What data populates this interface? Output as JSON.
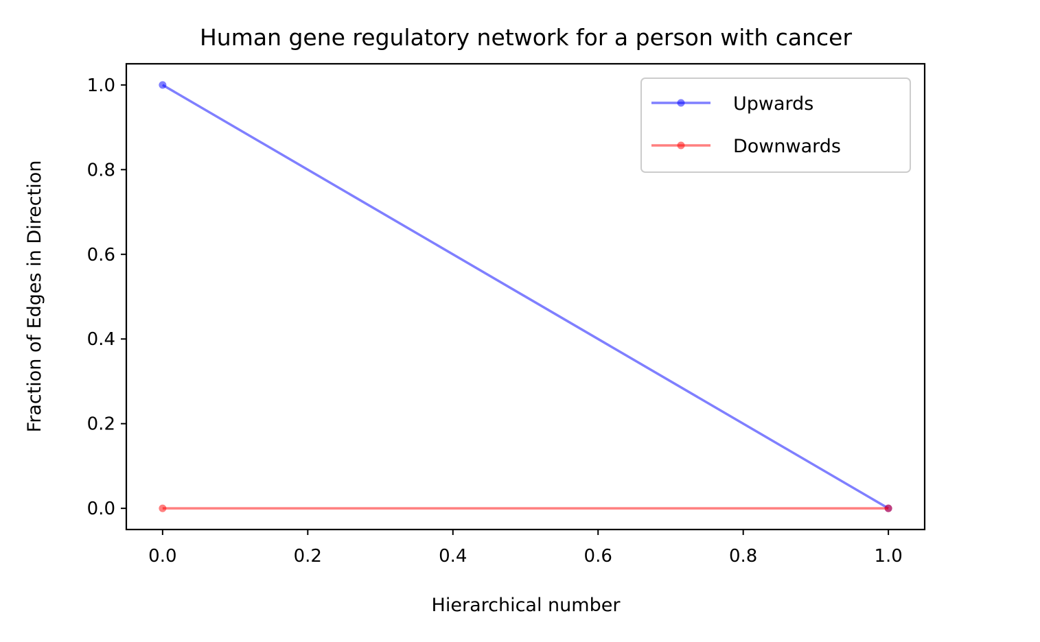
{
  "chart_data": {
    "type": "line",
    "title": "Human gene regulatory network for a person with cancer",
    "xlabel": "Hierarchical number",
    "ylabel": "Fraction of Edges in Direction",
    "xlim": [
      -0.05,
      1.05
    ],
    "ylim": [
      -0.05,
      1.05
    ],
    "xticks": [
      0.0,
      0.2,
      0.4,
      0.6,
      0.8,
      1.0
    ],
    "xtick_labels": [
      "0.0",
      "0.2",
      "0.4",
      "0.6",
      "0.8",
      "1.0"
    ],
    "yticks": [
      0.0,
      0.2,
      0.4,
      0.6,
      0.8,
      1.0
    ],
    "ytick_labels": [
      "0.0",
      "0.2",
      "0.4",
      "0.6",
      "0.8",
      "1.0"
    ],
    "grid": false,
    "legend_position": "top-right",
    "series": [
      {
        "name": "Upwards",
        "color": "#0000ff",
        "x": [
          0.0,
          1.0
        ],
        "y": [
          1.0,
          0.0
        ]
      },
      {
        "name": "Downwards",
        "color": "#ff0000",
        "x": [
          0.0,
          1.0
        ],
        "y": [
          0.0,
          0.0
        ]
      }
    ]
  }
}
